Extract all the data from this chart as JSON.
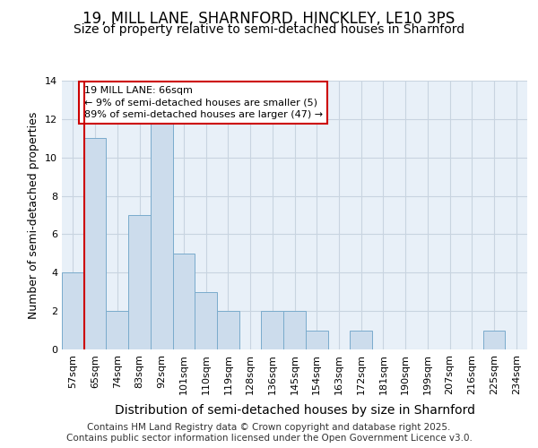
{
  "title1": "19, MILL LANE, SHARNFORD, HINCKLEY, LE10 3PS",
  "title2": "Size of property relative to semi-detached houses in Sharnford",
  "xlabel": "Distribution of semi-detached houses by size in Sharnford",
  "ylabel": "Number of semi-detached properties",
  "bins": [
    "57sqm",
    "65sqm",
    "74sqm",
    "83sqm",
    "92sqm",
    "101sqm",
    "110sqm",
    "119sqm",
    "128sqm",
    "136sqm",
    "145sqm",
    "154sqm",
    "163sqm",
    "172sqm",
    "181sqm",
    "190sqm",
    "199sqm",
    "207sqm",
    "216sqm",
    "225sqm",
    "234sqm"
  ],
  "values": [
    4,
    11,
    2,
    7,
    12,
    5,
    3,
    2,
    0,
    2,
    2,
    1,
    0,
    1,
    0,
    0,
    0,
    0,
    0,
    1,
    0
  ],
  "bar_color": "#ccdcec",
  "bar_edge_color": "#7aabcc",
  "vline_color": "#cc0000",
  "annotation_text": "19 MILL LANE: 66sqm\n← 9% of semi-detached houses are smaller (5)\n89% of semi-detached houses are larger (47) →",
  "annotation_box_facecolor": "#ffffff",
  "annotation_box_edgecolor": "#cc0000",
  "ylim": [
    0,
    14
  ],
  "yticks": [
    0,
    2,
    4,
    6,
    8,
    10,
    12,
    14
  ],
  "footer": "Contains HM Land Registry data © Crown copyright and database right 2025.\nContains public sector information licensed under the Open Government Licence v3.0.",
  "bg_color": "#ffffff",
  "plot_bg_color": "#e8f0f8",
  "grid_color": "#c8d4e0",
  "title1_fontsize": 12,
  "title2_fontsize": 10,
  "xlabel_fontsize": 10,
  "ylabel_fontsize": 9,
  "tick_fontsize": 8,
  "annot_fontsize": 8,
  "footer_fontsize": 7.5
}
